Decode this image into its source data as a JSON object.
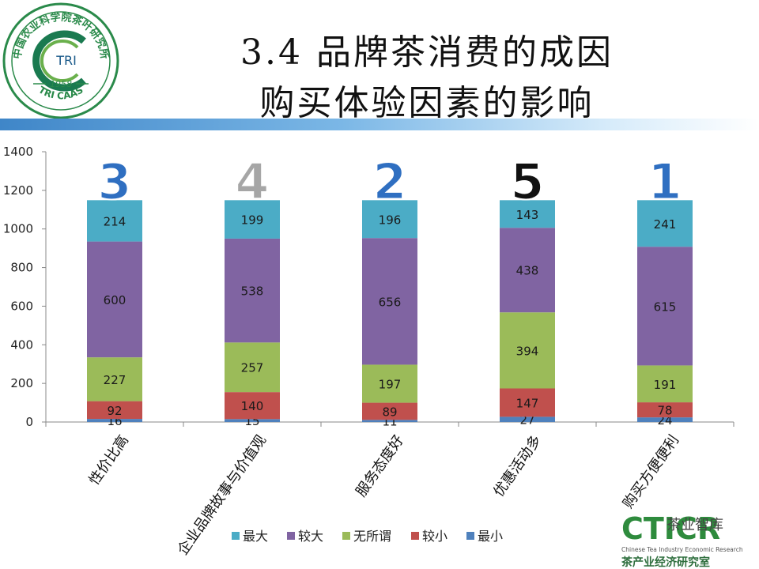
{
  "logo": {
    "org_text": "中国农业科学院茶叶研究所",
    "center": "TRI",
    "year": "1958",
    "bottom": "TRI CAAS"
  },
  "title": {
    "line1": "3.4 品牌茶消费的成因",
    "line2": "购买体验因素的影响"
  },
  "watermark": {
    "brand": "CTICR",
    "label": "茶业智库",
    "en": "Chinese Tea Industry Economic Research",
    "cn": "茶产业经济研究室"
  },
  "chart_data": {
    "type": "bar",
    "stacked": true,
    "categories": [
      "性价比高",
      "企业品牌故事与价值观",
      "服务态度好",
      "优惠活动多",
      "购买方便便利"
    ],
    "ranks": [
      "3",
      "4",
      "2",
      "5",
      "1"
    ],
    "series": [
      {
        "name": "最小",
        "values": [
          16,
          15,
          11,
          27,
          24
        ],
        "color": "#4f81bd"
      },
      {
        "name": "较小",
        "values": [
          92,
          140,
          89,
          147,
          78
        ],
        "color": "#c0504d"
      },
      {
        "name": "无所谓",
        "values": [
          227,
          257,
          197,
          394,
          191
        ],
        "color": "#9bbb59"
      },
      {
        "name": "较大",
        "values": [
          600,
          538,
          656,
          438,
          615
        ],
        "color": "#8064a2"
      },
      {
        "name": "最大",
        "values": [
          214,
          199,
          196,
          143,
          241
        ],
        "color": "#4bacc6"
      }
    ],
    "legend_order": [
      "最大",
      "较大",
      "无所谓",
      "较小",
      "最小"
    ],
    "yticks": [
      0,
      200,
      400,
      600,
      800,
      1000,
      1200,
      1400
    ],
    "ylim": [
      0,
      1400
    ],
    "grid": false,
    "legend_position": "bottom"
  }
}
